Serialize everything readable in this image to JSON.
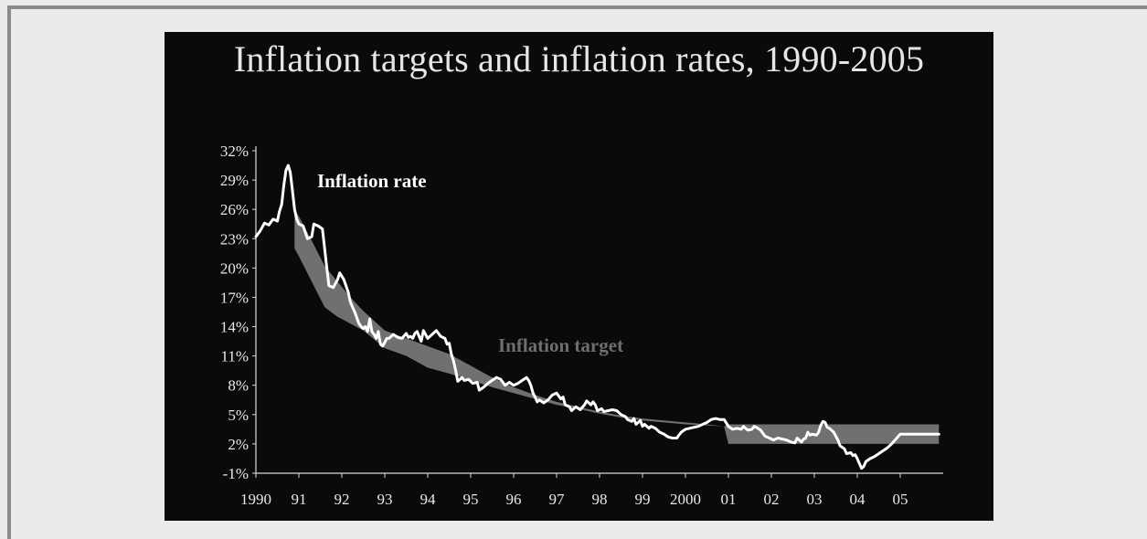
{
  "chart_data": {
    "type": "line",
    "title": "Inflation targets and inflation rates, 1990-2005",
    "xlabel": "",
    "ylabel": "",
    "xlim": [
      1990.0,
      2006.0
    ],
    "ylim": [
      -1,
      32
    ],
    "grid": false,
    "y_ticks": [
      32,
      29,
      26,
      23,
      20,
      17,
      14,
      11,
      8,
      5,
      2,
      -1
    ],
    "y_tick_labels": [
      "32%",
      "29%",
      "26%",
      "23%",
      "20%",
      "17%",
      "14%",
      "11%",
      "8%",
      "5%",
      "2%",
      "-1%"
    ],
    "x_ticks": [
      1990,
      1991,
      1992,
      1993,
      1994,
      1995,
      1996,
      1997,
      1998,
      1999,
      2000,
      2001,
      2002,
      2003,
      2004,
      2005
    ],
    "x_tick_labels": [
      "1990",
      "91",
      "92",
      "93",
      "94",
      "95",
      "96",
      "97",
      "98",
      "99",
      "2000",
      "01",
      "02",
      "03",
      "04",
      "05"
    ],
    "annotations": [
      {
        "text": "Inflation rate",
        "series": "rate"
      },
      {
        "text": "Inflation target",
        "series": "target"
      }
    ],
    "series": [
      {
        "name": "Inflation rate",
        "key": "rate",
        "color": "#ffffff",
        "points": [
          [
            1990.0,
            23.2
          ],
          [
            1990.1,
            23.8
          ],
          [
            1990.2,
            24.6
          ],
          [
            1990.3,
            24.4
          ],
          [
            1990.4,
            25.0
          ],
          [
            1990.5,
            24.8
          ],
          [
            1990.55,
            25.8
          ],
          [
            1990.6,
            26.5
          ],
          [
            1990.65,
            28.5
          ],
          [
            1990.7,
            30.0
          ],
          [
            1990.75,
            30.5
          ],
          [
            1990.8,
            29.8
          ],
          [
            1990.85,
            28.0
          ],
          [
            1990.9,
            26.0
          ],
          [
            1990.95,
            25.0
          ],
          [
            1991.0,
            24.5
          ],
          [
            1991.1,
            24.3
          ],
          [
            1991.2,
            23.0
          ],
          [
            1991.3,
            23.2
          ],
          [
            1991.35,
            24.5
          ],
          [
            1991.45,
            24.3
          ],
          [
            1991.55,
            24.0
          ],
          [
            1991.6,
            22.0
          ],
          [
            1991.65,
            20.0
          ],
          [
            1991.7,
            18.2
          ],
          [
            1991.8,
            18.0
          ],
          [
            1991.9,
            18.8
          ],
          [
            1991.95,
            19.5
          ],
          [
            1992.05,
            18.8
          ],
          [
            1992.15,
            17.5
          ],
          [
            1992.2,
            16.5
          ],
          [
            1992.3,
            15.5
          ],
          [
            1992.4,
            14.3
          ],
          [
            1992.45,
            14.0
          ],
          [
            1992.5,
            13.8
          ],
          [
            1992.55,
            14.0
          ],
          [
            1992.6,
            13.5
          ],
          [
            1992.65,
            14.8
          ],
          [
            1992.7,
            13.5
          ],
          [
            1992.75,
            13.2
          ],
          [
            1992.8,
            12.8
          ],
          [
            1992.85,
            13.5
          ],
          [
            1992.9,
            12.2
          ],
          [
            1992.95,
            12.0
          ],
          [
            1993.05,
            12.8
          ],
          [
            1993.1,
            12.8
          ],
          [
            1993.2,
            13.2
          ],
          [
            1993.3,
            12.9
          ],
          [
            1993.4,
            12.8
          ],
          [
            1993.5,
            13.3
          ],
          [
            1993.55,
            12.9
          ],
          [
            1993.6,
            13.0
          ],
          [
            1993.65,
            12.8
          ],
          [
            1993.7,
            13.3
          ],
          [
            1993.75,
            13.5
          ],
          [
            1993.8,
            13.0
          ],
          [
            1993.85,
            12.5
          ],
          [
            1993.9,
            13.6
          ],
          [
            1994.0,
            12.8
          ],
          [
            1994.1,
            13.2
          ],
          [
            1994.2,
            13.6
          ],
          [
            1994.3,
            13.0
          ],
          [
            1994.4,
            12.8
          ],
          [
            1994.45,
            12.2
          ],
          [
            1994.5,
            12.3
          ],
          [
            1994.55,
            11.2
          ],
          [
            1994.6,
            10.5
          ],
          [
            1994.65,
            9.5
          ],
          [
            1994.7,
            8.4
          ],
          [
            1994.8,
            8.8
          ],
          [
            1994.85,
            8.5
          ],
          [
            1994.95,
            8.6
          ],
          [
            1995.05,
            8.2
          ],
          [
            1995.15,
            8.3
          ],
          [
            1995.2,
            7.5
          ],
          [
            1995.3,
            7.8
          ],
          [
            1995.4,
            8.2
          ],
          [
            1995.5,
            8.5
          ],
          [
            1995.6,
            8.8
          ],
          [
            1995.7,
            8.6
          ],
          [
            1995.8,
            8.0
          ],
          [
            1995.9,
            8.3
          ],
          [
            1996.0,
            8.0
          ],
          [
            1996.1,
            8.2
          ],
          [
            1996.2,
            8.5
          ],
          [
            1996.3,
            8.8
          ],
          [
            1996.35,
            8.5
          ],
          [
            1996.4,
            8.0
          ],
          [
            1996.45,
            7.2
          ],
          [
            1996.5,
            6.8
          ],
          [
            1996.55,
            6.3
          ],
          [
            1996.6,
            6.5
          ],
          [
            1996.7,
            6.2
          ],
          [
            1996.8,
            6.5
          ],
          [
            1996.9,
            7.0
          ],
          [
            1997.0,
            7.2
          ],
          [
            1997.1,
            6.6
          ],
          [
            1997.15,
            6.8
          ],
          [
            1997.2,
            6.0
          ],
          [
            1997.3,
            5.8
          ],
          [
            1997.35,
            5.4
          ],
          [
            1997.45,
            5.8
          ],
          [
            1997.55,
            5.5
          ],
          [
            1997.65,
            6.0
          ],
          [
            1997.7,
            6.4
          ],
          [
            1997.8,
            6.0
          ],
          [
            1997.85,
            6.3
          ],
          [
            1997.9,
            6.0
          ],
          [
            1997.95,
            5.4
          ],
          [
            1998.05,
            5.6
          ],
          [
            1998.1,
            5.3
          ],
          [
            1998.2,
            5.4
          ],
          [
            1998.3,
            5.5
          ],
          [
            1998.4,
            5.4
          ],
          [
            1998.5,
            5.0
          ],
          [
            1998.6,
            4.8
          ],
          [
            1998.65,
            4.5
          ],
          [
            1998.75,
            4.3
          ],
          [
            1998.8,
            4.6
          ],
          [
            1998.85,
            4.0
          ],
          [
            1998.95,
            4.4
          ],
          [
            1999.0,
            3.8
          ],
          [
            1999.05,
            4.0
          ],
          [
            1999.15,
            3.6
          ],
          [
            1999.2,
            3.8
          ],
          [
            1999.3,
            3.6
          ],
          [
            1999.4,
            3.2
          ],
          [
            1999.5,
            3.0
          ],
          [
            1999.6,
            2.7
          ],
          [
            1999.7,
            2.6
          ],
          [
            1999.8,
            2.6
          ],
          [
            1999.85,
            2.9
          ],
          [
            1999.9,
            3.2
          ],
          [
            2000.0,
            3.5
          ],
          [
            2000.1,
            3.6
          ],
          [
            2000.2,
            3.7
          ],
          [
            2000.3,
            3.8
          ],
          [
            2000.4,
            4.0
          ],
          [
            2000.5,
            4.2
          ],
          [
            2000.6,
            4.5
          ],
          [
            2000.7,
            4.6
          ],
          [
            2000.8,
            4.5
          ],
          [
            2000.9,
            4.5
          ],
          [
            2001.0,
            3.8
          ],
          [
            2001.1,
            3.5
          ],
          [
            2001.2,
            3.6
          ],
          [
            2001.3,
            3.5
          ],
          [
            2001.35,
            3.8
          ],
          [
            2001.45,
            3.4
          ],
          [
            2001.55,
            3.5
          ],
          [
            2001.6,
            3.8
          ],
          [
            2001.65,
            3.7
          ],
          [
            2001.75,
            3.4
          ],
          [
            2001.8,
            3.1
          ],
          [
            2001.85,
            2.8
          ],
          [
            2001.95,
            2.6
          ],
          [
            2002.05,
            2.4
          ],
          [
            2002.15,
            2.6
          ],
          [
            2002.25,
            2.5
          ],
          [
            2002.35,
            2.4
          ],
          [
            2002.45,
            2.2
          ],
          [
            2002.55,
            2.1
          ],
          [
            2002.6,
            2.6
          ],
          [
            2002.7,
            2.2
          ],
          [
            2002.75,
            2.5
          ],
          [
            2002.8,
            2.6
          ],
          [
            2002.85,
            3.2
          ],
          [
            2002.9,
            2.9
          ],
          [
            2002.95,
            3.0
          ],
          [
            2003.05,
            2.9
          ],
          [
            2003.1,
            3.2
          ],
          [
            2003.15,
            3.9
          ],
          [
            2003.2,
            4.3
          ],
          [
            2003.25,
            4.2
          ],
          [
            2003.3,
            3.7
          ],
          [
            2003.35,
            3.6
          ],
          [
            2003.45,
            3.2
          ],
          [
            2003.5,
            2.8
          ],
          [
            2003.55,
            2.4
          ],
          [
            2003.6,
            1.8
          ],
          [
            2003.7,
            1.5
          ],
          [
            2003.75,
            1.0
          ],
          [
            2003.85,
            1.1
          ],
          [
            2003.9,
            0.8
          ],
          [
            2003.95,
            0.9
          ],
          [
            2004.0,
            0.5
          ],
          [
            2004.05,
            0.0
          ],
          [
            2004.1,
            -0.5
          ],
          [
            2004.15,
            -0.3
          ],
          [
            2004.2,
            0.2
          ],
          [
            2004.3,
            0.5
          ],
          [
            2004.4,
            0.7
          ],
          [
            2004.5,
            1.0
          ],
          [
            2004.6,
            1.3
          ],
          [
            2004.7,
            1.6
          ],
          [
            2004.8,
            2.0
          ],
          [
            2004.9,
            2.5
          ],
          [
            2005.0,
            3.0
          ],
          [
            2005.1,
            3.0
          ],
          [
            2005.3,
            3.0
          ],
          [
            2005.5,
            3.0
          ],
          [
            2005.7,
            3.0
          ],
          [
            2005.9,
            3.0
          ]
        ]
      },
      {
        "name": "Inflation target",
        "key": "target",
        "color": "#707070",
        "band_upper": [
          [
            1990.9,
            26.0
          ],
          [
            1991.0,
            25.3
          ],
          [
            1991.3,
            22.8
          ],
          [
            1991.6,
            20.2
          ],
          [
            1991.9,
            18.6
          ],
          [
            1992.2,
            17.0
          ],
          [
            1992.5,
            15.6
          ],
          [
            1993.0,
            13.6
          ],
          [
            1993.5,
            12.8
          ],
          [
            1994.0,
            12.0
          ],
          [
            1994.5,
            11.2
          ],
          [
            1995.0,
            10.0
          ],
          [
            1995.5,
            8.8
          ],
          [
            1996.0,
            7.8
          ],
          [
            1996.5,
            7.0
          ],
          [
            1997.0,
            6.3
          ],
          [
            1997.5,
            5.8
          ],
          [
            1998.0,
            5.3
          ],
          [
            1998.5,
            4.9
          ],
          [
            1999.0,
            4.6
          ],
          [
            1999.5,
            4.4
          ],
          [
            2000.0,
            4.2
          ],
          [
            2000.5,
            4.0
          ],
          [
            2000.9,
            3.8
          ],
          [
            2001.0,
            4.0
          ],
          [
            2002.0,
            4.0
          ],
          [
            2003.0,
            4.0
          ],
          [
            2004.0,
            4.0
          ],
          [
            2005.0,
            4.0
          ],
          [
            2005.9,
            4.0
          ]
        ],
        "band_lower": [
          [
            1990.9,
            22.0
          ],
          [
            1991.0,
            21.2
          ],
          [
            1991.3,
            18.6
          ],
          [
            1991.6,
            16.0
          ],
          [
            1991.9,
            15.0
          ],
          [
            1992.2,
            14.3
          ],
          [
            1992.5,
            13.6
          ],
          [
            1993.0,
            11.8
          ],
          [
            1993.5,
            11.0
          ],
          [
            1994.0,
            9.8
          ],
          [
            1994.5,
            9.2
          ],
          [
            1995.0,
            8.5
          ],
          [
            1995.5,
            7.8
          ],
          [
            1996.0,
            7.2
          ],
          [
            1996.5,
            6.6
          ],
          [
            1997.0,
            6.0
          ],
          [
            1997.5,
            5.6
          ],
          [
            1998.0,
            5.1
          ],
          [
            1998.5,
            4.7
          ],
          [
            1999.0,
            4.4
          ],
          [
            1999.5,
            4.2
          ],
          [
            2000.0,
            4.0
          ],
          [
            2000.5,
            3.9
          ],
          [
            2000.9,
            3.8
          ],
          [
            2001.0,
            2.0
          ],
          [
            2002.0,
            2.0
          ],
          [
            2003.0,
            2.0
          ],
          [
            2004.0,
            2.0
          ],
          [
            2005.0,
            2.0
          ],
          [
            2005.9,
            2.0
          ]
        ]
      }
    ]
  }
}
